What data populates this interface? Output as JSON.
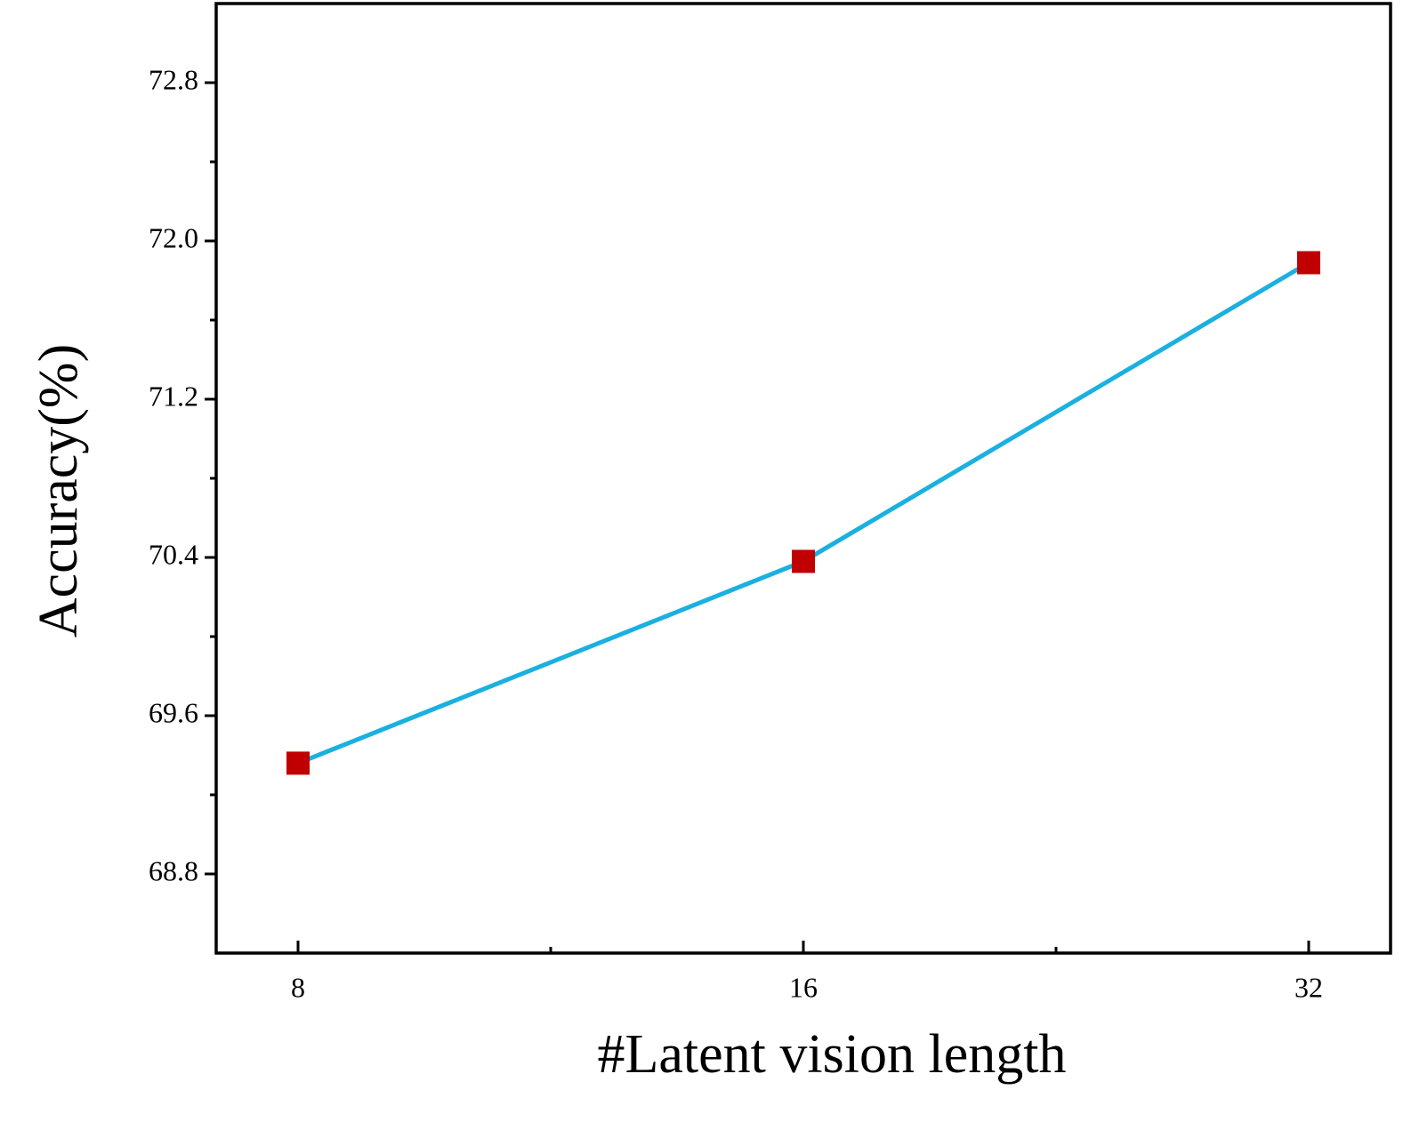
{
  "chart_data": {
    "type": "line",
    "x_label": "#Latent vision length",
    "y_label": "Accuracy(%)",
    "categories": [
      "8",
      "16",
      "32"
    ],
    "series": [
      {
        "name": "Accuracy",
        "color": "#1ab0e0",
        "marker_color": "#c00000",
        "values": [
          69.36,
          70.38,
          71.89
        ]
      }
    ],
    "ylim": [
      68.4,
      73.2
    ],
    "yticks": [
      68.8,
      69.6,
      70.4,
      71.2,
      {
        "value": 72,
        "label": "72.0"
      },
      72.8
    ],
    "grid": false
  }
}
